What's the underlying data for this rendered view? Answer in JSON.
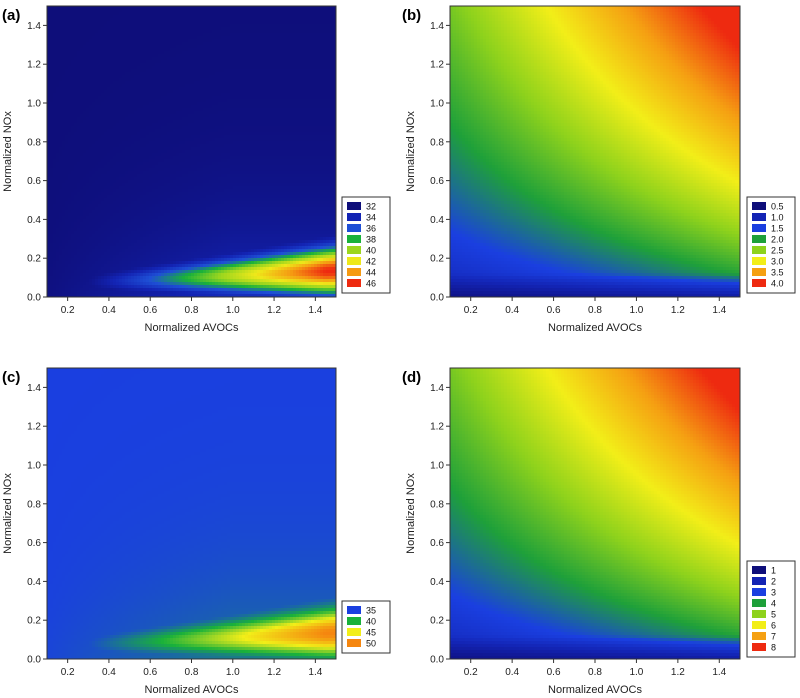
{
  "chart_data": [
    {
      "panel": "(a)",
      "type": "heatmap",
      "xlabel": "Normalized AVOCs",
      "ylabel": "Normalized NOx",
      "xlim": [
        0.1,
        1.5
      ],
      "ylim": [
        0.0,
        1.5
      ],
      "xticks": [
        "0.2",
        "0.4",
        "0.6",
        "0.8",
        "1.0",
        "1.2",
        "1.4"
      ],
      "yticks": [
        "0.0",
        "0.2",
        "0.4",
        "0.6",
        "0.8",
        "1.0",
        "1.2",
        "1.4"
      ],
      "legend": {
        "placement": "right",
        "entries": [
          {
            "label": "32",
            "color": "#0e0e7a"
          },
          {
            "label": "34",
            "color": "#1324b4"
          },
          {
            "label": "36",
            "color": "#1e4fd6"
          },
          {
            "label": "38",
            "color": "#19b13a"
          },
          {
            "label": "40",
            "color": "#9cd61e"
          },
          {
            "label": "42",
            "color": "#eee81a"
          },
          {
            "label": "44",
            "color": "#f59a12"
          },
          {
            "label": "46",
            "color": "#ee2a10"
          }
        ]
      },
      "surface": "ridge",
      "ridge": {
        "peak_color_index": 7,
        "background_index": 0
      }
    },
    {
      "panel": "(b)",
      "type": "heatmap",
      "xlabel": "Normalized AVOCs",
      "ylabel": "Normalized NOx",
      "xlim": [
        0.1,
        1.5
      ],
      "ylim": [
        0.0,
        1.5
      ],
      "xticks": [
        "0.2",
        "0.4",
        "0.6",
        "0.8",
        "1.0",
        "1.2",
        "1.4"
      ],
      "yticks": [
        "0.0",
        "0.2",
        "0.4",
        "0.6",
        "0.8",
        "1.0",
        "1.2",
        "1.4"
      ],
      "legend": {
        "placement": "right",
        "entries": [
          {
            "label": "0.5",
            "color": "#0e0e7a"
          },
          {
            "label": "1.0",
            "color": "#1324b4"
          },
          {
            "label": "1.5",
            "color": "#1a3fe0"
          },
          {
            "label": "2.0",
            "color": "#1ea03a"
          },
          {
            "label": "2.5",
            "color": "#8ed21c"
          },
          {
            "label": "3.0",
            "color": "#f2ee18"
          },
          {
            "label": "3.5",
            "color": "#f5a012"
          },
          {
            "label": "4.0",
            "color": "#ee2a10"
          }
        ]
      },
      "surface": "gradient",
      "gradient": {
        "min_value": 0.3,
        "max_value": 4.2
      }
    },
    {
      "panel": "(c)",
      "type": "heatmap",
      "xlabel": "Normalized AVOCs",
      "ylabel": "Normalized NOx",
      "xlim": [
        0.1,
        1.5
      ],
      "ylim": [
        0.0,
        1.5
      ],
      "xticks": [
        "0.2",
        "0.4",
        "0.6",
        "0.8",
        "1.0",
        "1.2",
        "1.4"
      ],
      "yticks": [
        "0.0",
        "0.2",
        "0.4",
        "0.6",
        "0.8",
        "1.0",
        "1.2",
        "1.4"
      ],
      "legend": {
        "placement": "right",
        "entries": [
          {
            "label": "35",
            "color": "#1a3fe0"
          },
          {
            "label": "40",
            "color": "#19b13a"
          },
          {
            "label": "45",
            "color": "#f2ee18"
          },
          {
            "label": "50",
            "color": "#f5860f"
          }
        ]
      },
      "surface": "ridge",
      "ridge": {
        "peak_color_index": 3,
        "background_index": 0
      }
    },
    {
      "panel": "(d)",
      "type": "heatmap",
      "xlabel": "Normalized AVOCs",
      "ylabel": "Normalized NOx",
      "xlim": [
        0.1,
        1.5
      ],
      "ylim": [
        0.0,
        1.5
      ],
      "xticks": [
        "0.2",
        "0.4",
        "0.6",
        "0.8",
        "1.0",
        "1.2",
        "1.4"
      ],
      "yticks": [
        "0.0",
        "0.2",
        "0.4",
        "0.6",
        "0.8",
        "1.0",
        "1.2",
        "1.4"
      ],
      "legend": {
        "placement": "right",
        "entries": [
          {
            "label": "1",
            "color": "#0e0e7a"
          },
          {
            "label": "2",
            "color": "#1324b4"
          },
          {
            "label": "3",
            "color": "#1a3fe0"
          },
          {
            "label": "4",
            "color": "#1ea03a"
          },
          {
            "label": "5",
            "color": "#8ed21c"
          },
          {
            "label": "6",
            "color": "#f2ee18"
          },
          {
            "label": "7",
            "color": "#f5a012"
          },
          {
            "label": "8",
            "color": "#ee2a10"
          }
        ]
      },
      "surface": "gradient",
      "gradient": {
        "min_value": 0.6,
        "max_value": 8.4
      }
    }
  ]
}
